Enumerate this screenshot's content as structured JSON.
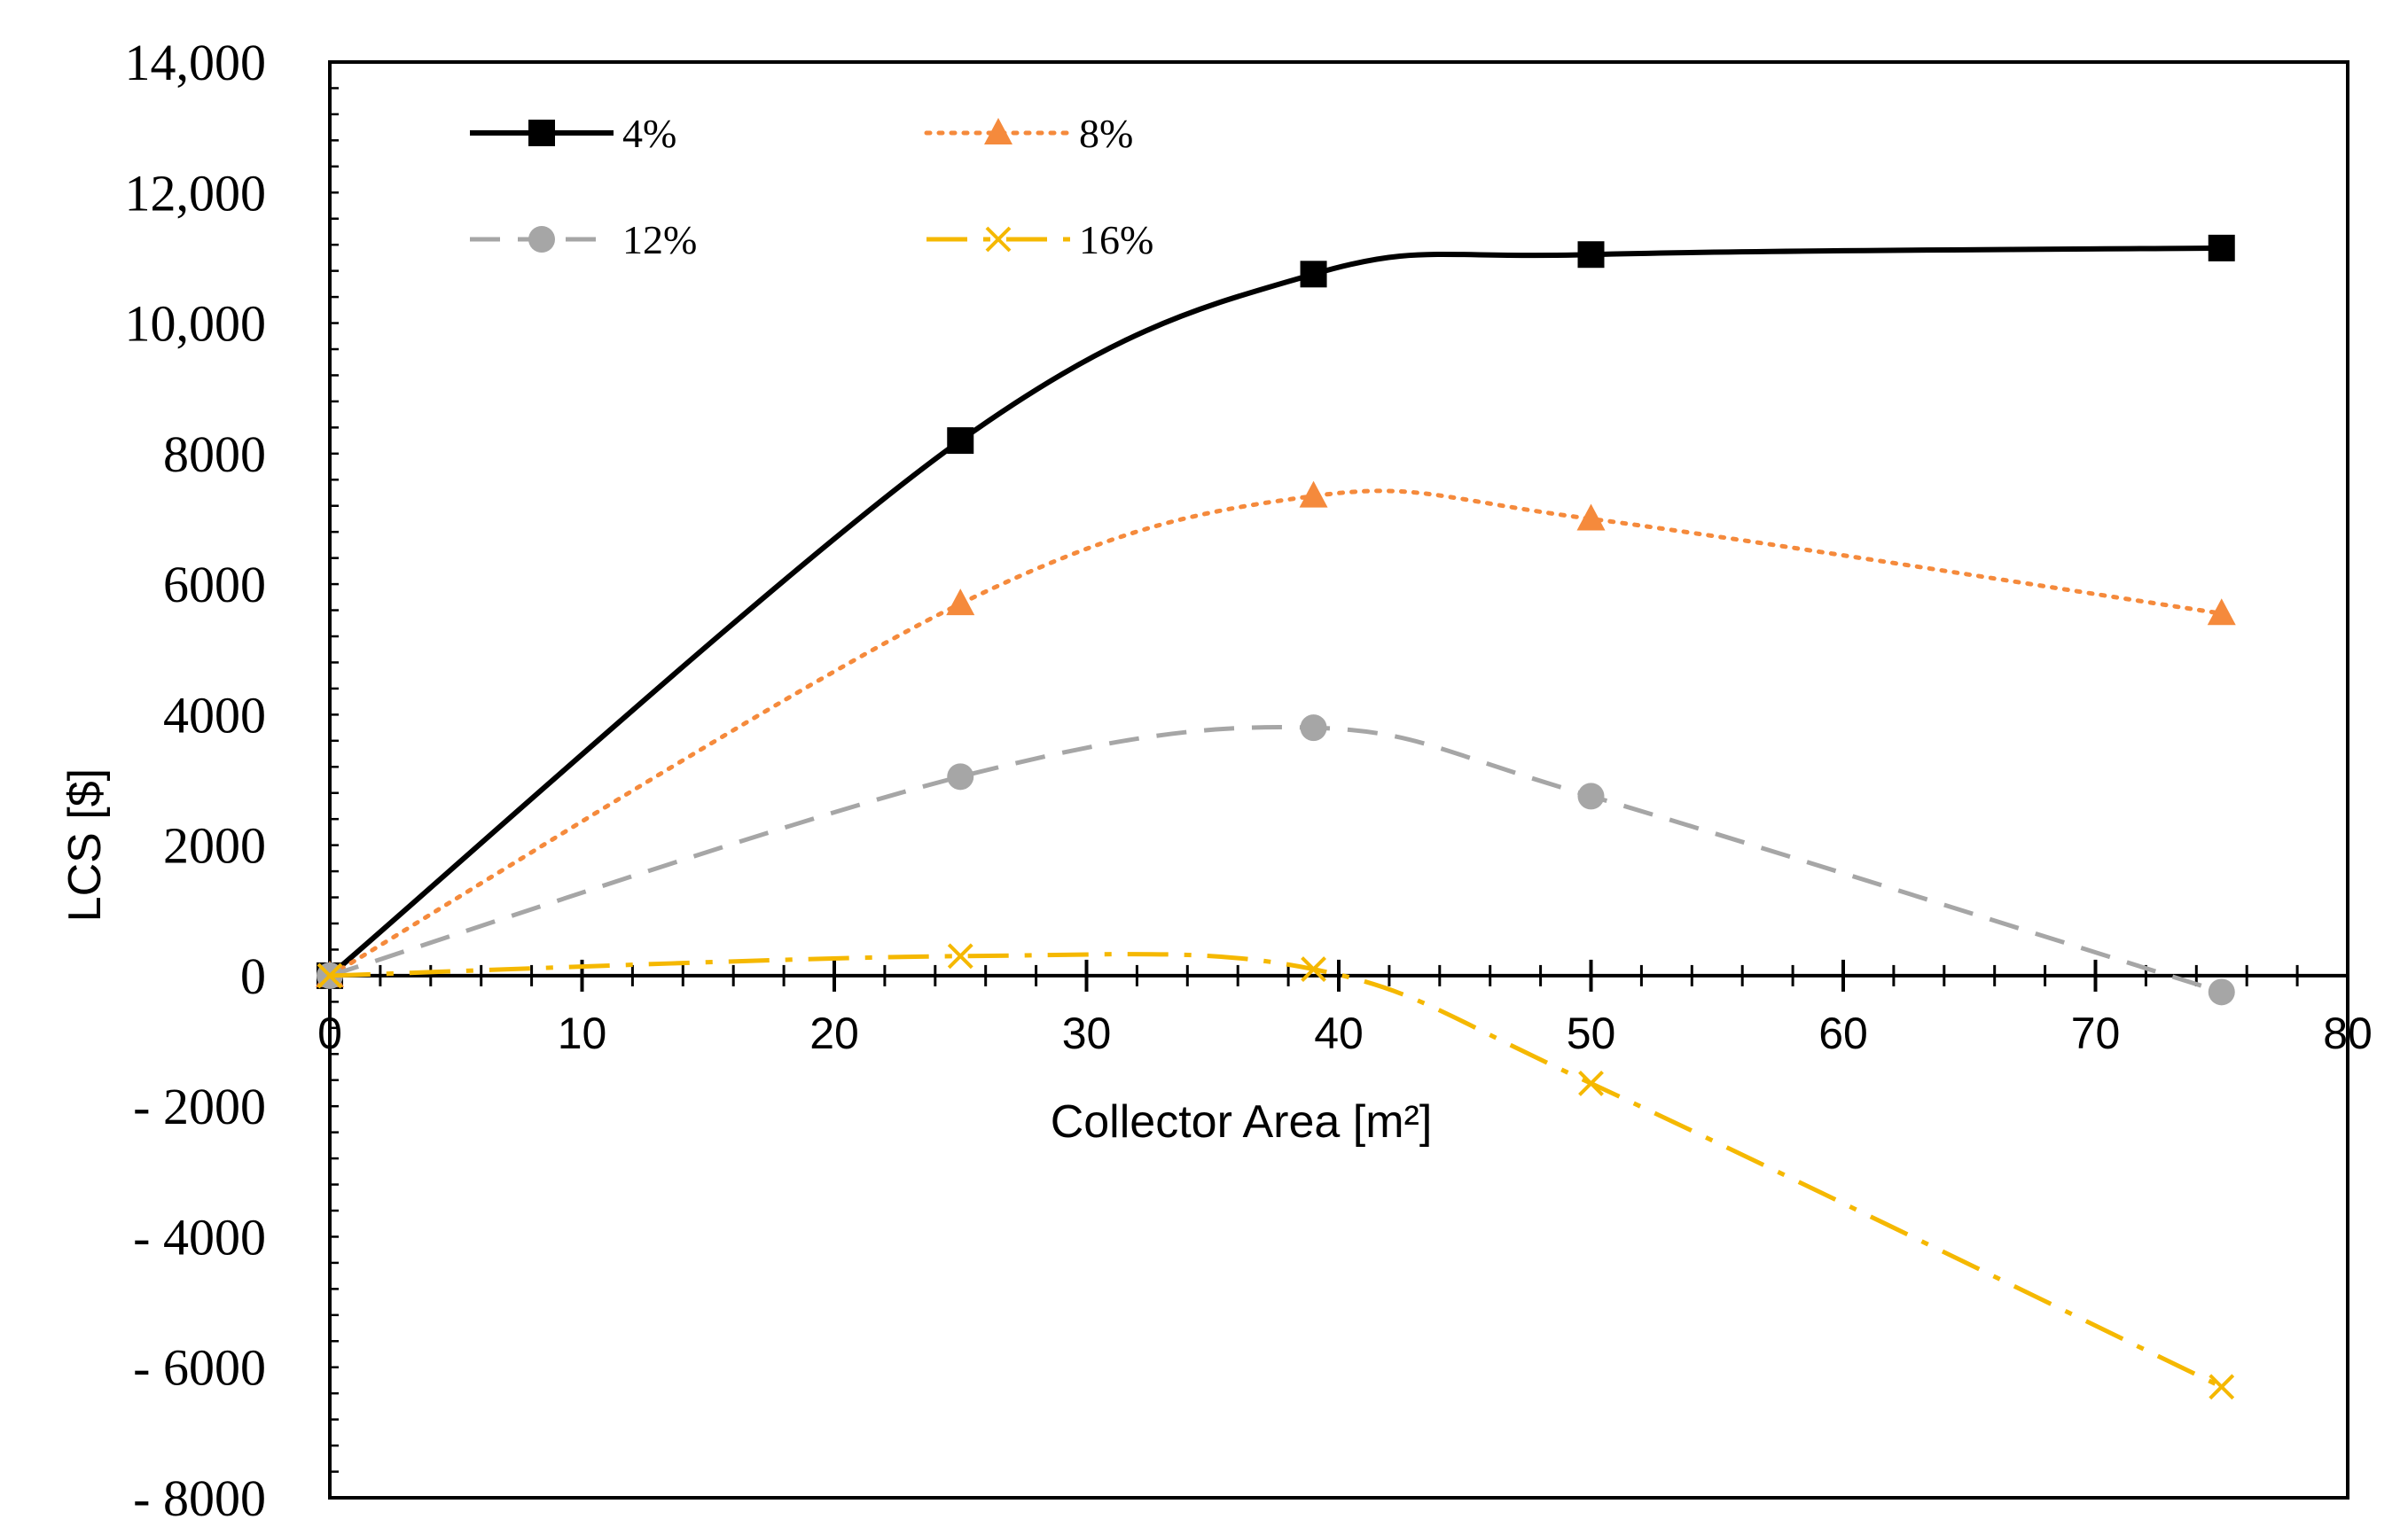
{
  "chart_data": {
    "type": "line",
    "title": "",
    "xlabel": "Collector Area [m²]",
    "ylabel": "LCS [$]",
    "xlim": [
      0,
      80
    ],
    "ylim": [
      -8000,
      14000
    ],
    "x_ticks": [
      0,
      10,
      20,
      30,
      40,
      50,
      60,
      70,
      80
    ],
    "x_tick_labels": [
      "0",
      "10",
      "20",
      "30",
      "40",
      "50",
      "60",
      "70",
      "80"
    ],
    "y_ticks": [
      14000,
      12000,
      10000,
      8000,
      6000,
      4000,
      2000,
      0,
      -2000,
      -4000,
      -6000,
      -8000
    ],
    "y_tick_labels": [
      "14,000",
      "12,000",
      "10,000",
      "8000",
      "6000",
      "4000",
      "2000",
      "0",
      "- 2000",
      "- 4000",
      "- 6000",
      "- 8000"
    ],
    "grid": false,
    "legend_position": "top-left",
    "series": [
      {
        "name": "4%",
        "color": "#000000",
        "dash": "solid",
        "marker": "square",
        "x": [
          0,
          25,
          39,
          50,
          75
        ],
        "y": [
          0,
          8200,
          10750,
          11050,
          11150
        ]
      },
      {
        "name": "8%",
        "color": "#F58A3C",
        "dash": "dotted",
        "marker": "triangle",
        "x": [
          0,
          25,
          39,
          50,
          75
        ],
        "y": [
          0,
          5700,
          7350,
          7000,
          5550
        ]
      },
      {
        "name": "12%",
        "color": "#A6A6A6",
        "dash": "dashed",
        "marker": "circle",
        "x": [
          0,
          25,
          39,
          50,
          75
        ],
        "y": [
          0,
          3050,
          3800,
          2750,
          -250
        ]
      },
      {
        "name": "16%",
        "color": "#F5B800",
        "dash": "dashdot",
        "marker": "x",
        "x": [
          0,
          25,
          39,
          50,
          75
        ],
        "y": [
          0,
          300,
          100,
          -1650,
          -6300
        ]
      }
    ]
  }
}
